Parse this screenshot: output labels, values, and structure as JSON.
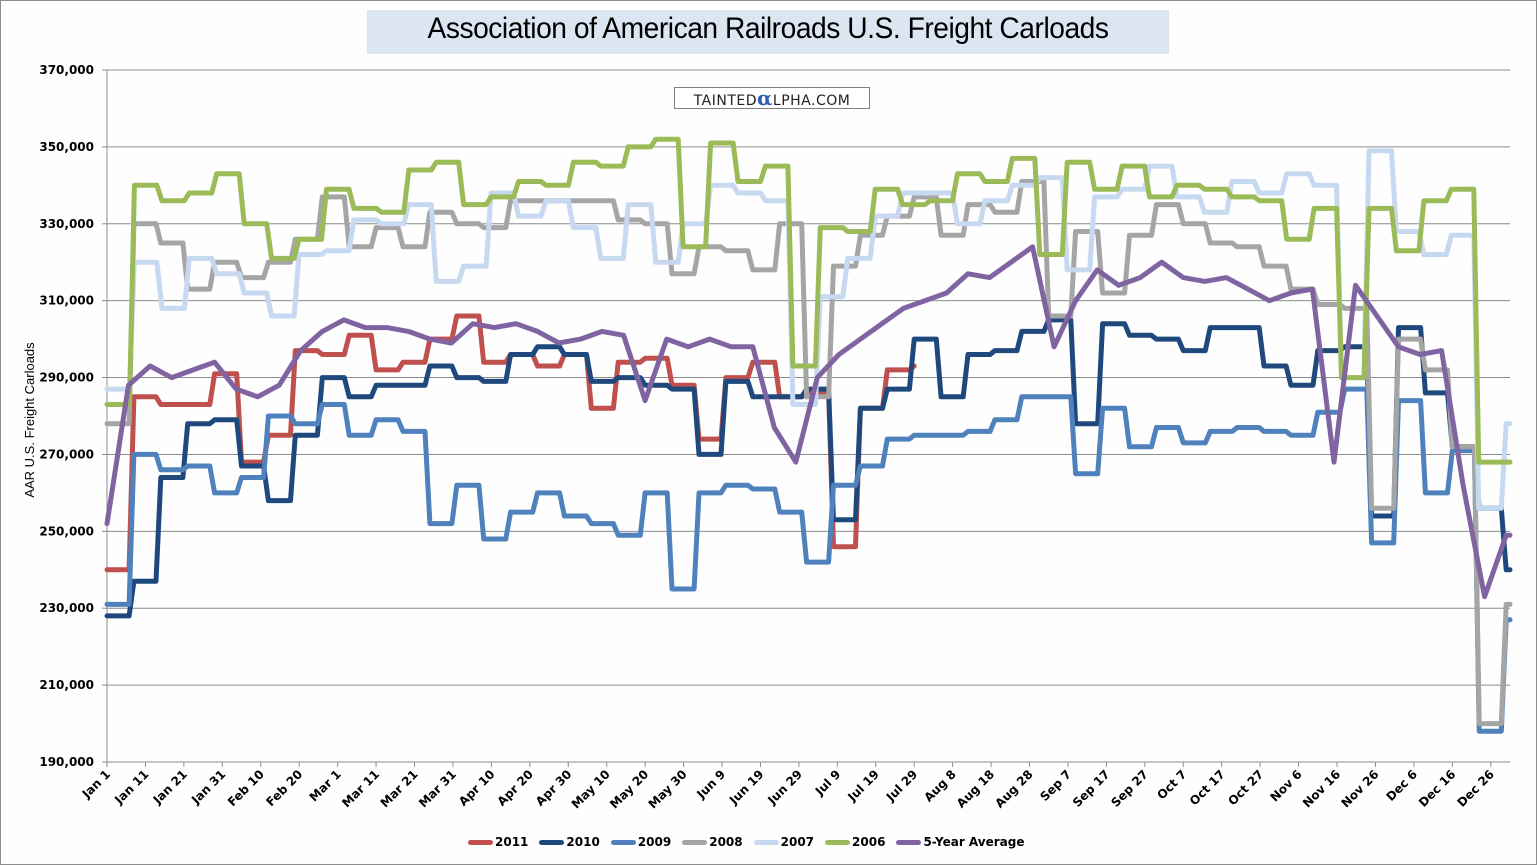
{
  "chart_data": {
    "type": "line",
    "title": "Association of American Railroads U.S. Freight Carloads",
    "xlabel": "",
    "ylabel": "AAR U.S. Freight Carloads",
    "ylim": [
      190000,
      370000
    ],
    "yticks": [
      "190,000",
      "210,000",
      "230,000",
      "250,000",
      "270,000",
      "290,000",
      "310,000",
      "330,000",
      "350,000",
      "370,000"
    ],
    "ytick_values": [
      190000,
      210000,
      230000,
      250000,
      270000,
      290000,
      310000,
      330000,
      350000,
      370000
    ],
    "x_tick_labels": [
      "Jan 1",
      "Jan 11",
      "Jan 21",
      "Jan 31",
      "Feb 10",
      "Feb 20",
      "Mar 1",
      "Mar 11",
      "Mar 21",
      "Mar 31",
      "Apr 10",
      "Apr 20",
      "Apr 30",
      "May 10",
      "May 20",
      "May 30",
      "Jun 9",
      "Jun 19",
      "Jun 29",
      "Jul 9",
      "Jul 19",
      "Jul 29",
      "Aug 8",
      "Aug 18",
      "Aug 28",
      "Sep 7",
      "Sep 17",
      "Sep 27",
      "Oct 7",
      "Oct 17",
      "Oct 27",
      "Nov 6",
      "Nov 16",
      "Nov 26",
      "Dec 6",
      "Dec 16",
      "Dec 26"
    ],
    "x_tick_day_step": 10,
    "x_unit": "day of year (weekly observations, day = 7 × week index)",
    "grid": true,
    "legend_position": "bottom",
    "series": [
      {
        "name": "2011",
        "color": "#c0504d",
        "values": [
          240000,
          285000,
          283000,
          283000,
          291000,
          268000,
          275000,
          297000,
          296000,
          301000,
          292000,
          294000,
          300000,
          306000,
          294000,
          296000,
          293000,
          296000,
          282000,
          294000,
          295000,
          288000,
          274000,
          290000,
          294000,
          285000,
          286000,
          246000,
          282000,
          292000,
          293000
        ]
      },
      {
        "name": "2010",
        "color": "#1f497d",
        "values": [
          228000,
          237000,
          264000,
          278000,
          279000,
          267000,
          258000,
          275000,
          290000,
          285000,
          288000,
          288000,
          293000,
          290000,
          289000,
          296000,
          298000,
          296000,
          289000,
          290000,
          288000,
          287000,
          270000,
          289000,
          285000,
          285000,
          287000,
          253000,
          282000,
          287000,
          300000,
          285000,
          296000,
          297000,
          302000,
          305000,
          278000,
          304000,
          301000,
          300000,
          297000,
          303000,
          303000,
          293000,
          288000,
          297000,
          298000,
          254000,
          303000,
          286000,
          272000,
          256000,
          240000
        ]
      },
      {
        "name": "2009",
        "color": "#4f81bd",
        "values": [
          231000,
          270000,
          266000,
          267000,
          260000,
          264000,
          280000,
          278000,
          283000,
          275000,
          279000,
          276000,
          252000,
          262000,
          248000,
          255000,
          260000,
          254000,
          252000,
          249000,
          260000,
          235000,
          260000,
          262000,
          261000,
          255000,
          242000,
          262000,
          267000,
          274000,
          275000,
          275000,
          276000,
          279000,
          285000,
          285000,
          265000,
          282000,
          272000,
          277000,
          273000,
          276000,
          277000,
          276000,
          275000,
          281000,
          287000,
          247000,
          284000,
          260000,
          271000,
          198000,
          227000
        ]
      },
      {
        "name": "2008",
        "color": "#a5a5a5",
        "values": [
          278000,
          330000,
          325000,
          313000,
          320000,
          316000,
          320000,
          326000,
          337000,
          324000,
          329000,
          324000,
          333000,
          330000,
          329000,
          336000,
          336000,
          336000,
          336000,
          331000,
          330000,
          317000,
          324000,
          323000,
          318000,
          330000,
          285000,
          319000,
          327000,
          332000,
          337000,
          327000,
          335000,
          333000,
          341000,
          306000,
          328000,
          312000,
          327000,
          335000,
          330000,
          325000,
          324000,
          319000,
          313000,
          309000,
          308000,
          256000,
          300000,
          292000,
          272000,
          200000,
          231000
        ]
      },
      {
        "name": "2007",
        "color": "#c6d9f1",
        "values": [
          287000,
          320000,
          308000,
          321000,
          317000,
          312000,
          306000,
          322000,
          323000,
          331000,
          330000,
          335000,
          315000,
          319000,
          338000,
          332000,
          336000,
          329000,
          321000,
          335000,
          320000,
          330000,
          340000,
          338000,
          336000,
          283000,
          311000,
          321000,
          332000,
          338000,
          338000,
          330000,
          336000,
          340000,
          342000,
          318000,
          337000,
          339000,
          345000,
          337000,
          333000,
          341000,
          338000,
          343000,
          340000,
          290000,
          349000,
          328000,
          322000,
          327000,
          256000,
          278000
        ]
      },
      {
        "name": "2006",
        "color": "#9bbb59",
        "values": [
          283000,
          340000,
          336000,
          338000,
          343000,
          330000,
          321000,
          326000,
          339000,
          334000,
          333000,
          344000,
          346000,
          335000,
          337000,
          341000,
          340000,
          346000,
          345000,
          350000,
          352000,
          324000,
          351000,
          341000,
          345000,
          293000,
          329000,
          328000,
          339000,
          335000,
          336000,
          343000,
          341000,
          347000,
          322000,
          346000,
          339000,
          345000,
          337000,
          340000,
          339000,
          337000,
          336000,
          326000,
          334000,
          290000,
          334000,
          323000,
          336000,
          339000,
          268000,
          268000
        ]
      },
      {
        "name": "5-Year Average",
        "color": "#8064a2",
        "values": [
          252000,
          288000,
          293000,
          290000,
          292000,
          294000,
          287000,
          285000,
          288000,
          297000,
          302000,
          305000,
          303000,
          303000,
          302000,
          300000,
          299000,
          304000,
          303000,
          304000,
          302000,
          299000,
          300000,
          302000,
          301000,
          284000,
          300000,
          298000,
          300000,
          298000,
          298000,
          277000,
          268000,
          290000,
          296000,
          300000,
          304000,
          308000,
          310000,
          312000,
          317000,
          316000,
          320000,
          324000,
          298000,
          310000,
          318000,
          314000,
          316000,
          320000,
          316000,
          315000,
          316000,
          313000,
          310000,
          312000,
          313000,
          268000,
          314000,
          306000,
          298000,
          296000,
          297000,
          262000,
          233000,
          249000
        ]
      }
    ]
  },
  "watermark": {
    "text_before": "TAINTED",
    "alpha_glyph": "α",
    "text_after": "LPHA.COM"
  }
}
